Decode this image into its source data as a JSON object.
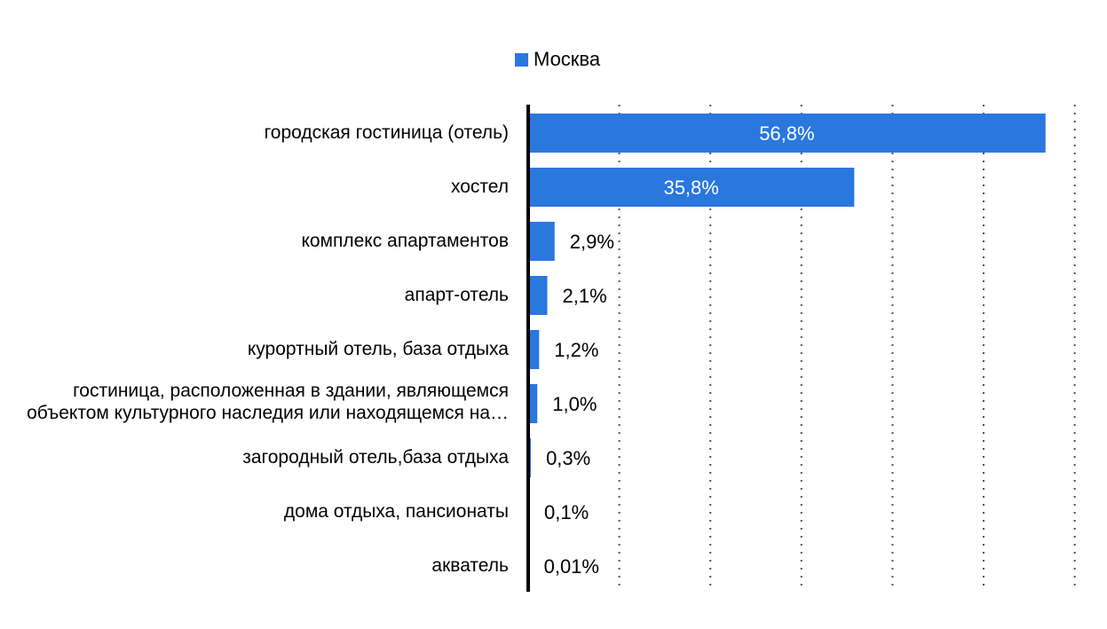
{
  "colors": {
    "bar": "#2a77de",
    "axis": "#000000",
    "grid": "#555555",
    "label_inside": "#ffffff",
    "label_outside": "#000000"
  },
  "chart_data": {
    "type": "bar",
    "orientation": "horizontal",
    "categories": [
      "городская гостиница (отель)",
      "хостел",
      "комплекс апартаментов",
      "апарт-отель",
      "курортный отель, база отдыха",
      "гостиница, расположенная в здании, являющемся объектом культурного наследия или находящемся на…",
      "загородный отель,база отдыха",
      "дома отдыха, пансионаты",
      "акватель"
    ],
    "series": [
      {
        "name": "Москва",
        "values": [
          56.8,
          35.8,
          2.9,
          2.1,
          1.2,
          1.0,
          0.3,
          0.1,
          0.01
        ],
        "labels": [
          "56,8%",
          "35,8%",
          "2,9%",
          "2,1%",
          "1,2%",
          "1,0%",
          "0,3%",
          "0,1%",
          "0,01%"
        ]
      }
    ],
    "xlim": [
      0,
      60
    ],
    "grid": "vertical dotted",
    "legend_position": "top"
  }
}
